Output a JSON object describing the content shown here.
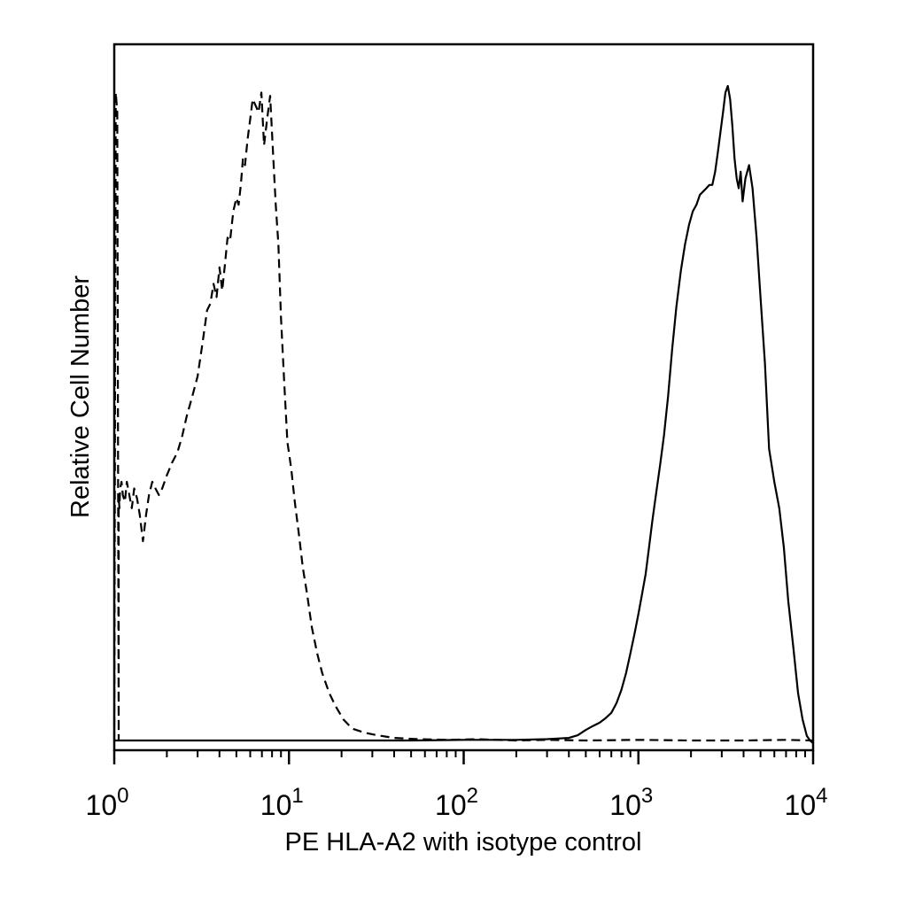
{
  "chart_data": {
    "type": "line",
    "title": "",
    "xlabel": "PE HLA-A2 with isotype control",
    "ylabel": "Relative Cell Number",
    "xscale": "log",
    "xlim": [
      1,
      10000
    ],
    "ylim": [
      0,
      100
    ],
    "grid": false,
    "legend": "none",
    "x_ticks": [
      {
        "base": "10",
        "exp": "0",
        "value": 1
      },
      {
        "base": "10",
        "exp": "1",
        "value": 10
      },
      {
        "base": "10",
        "exp": "2",
        "value": 100
      },
      {
        "base": "10",
        "exp": "3",
        "value": 1000
      },
      {
        "base": "10",
        "exp": "4",
        "value": 10000
      }
    ],
    "series": [
      {
        "style": "dashed",
        "color": "#000000",
        "x": [
          1.0,
          1.02,
          1.04,
          1.06,
          1.06,
          1.07,
          1.08,
          1.1,
          1.12,
          1.15,
          1.18,
          1.22,
          1.26,
          1.3,
          1.35,
          1.4,
          1.46,
          1.52,
          1.58,
          1.65,
          1.72,
          1.8,
          1.88,
          2.0,
          2.15,
          2.3,
          2.45,
          2.6,
          2.8,
          3.0,
          3.2,
          3.4,
          3.55,
          3.7,
          3.85,
          4.0,
          4.15,
          4.3,
          4.45,
          4.6,
          4.8,
          5.0,
          5.15,
          5.3,
          5.45,
          5.6,
          5.8,
          6.0,
          6.2,
          6.45,
          6.7,
          6.95,
          7.2,
          7.5,
          7.8,
          8.1,
          8.4,
          8.7,
          9.0,
          9.4,
          9.8,
          10.3,
          10.8,
          11.4,
          12.0,
          12.7,
          13.5,
          14.5,
          15.5,
          17.0,
          18.5,
          20.5,
          23.0,
          27.0,
          32.0,
          40.0,
          55.0,
          80.0,
          120.0,
          200.0,
          300.0,
          500.0,
          1000.0,
          2000.0,
          4000.0,
          7000.0,
          10000.0
        ],
        "y": [
          0.8,
          99.0,
          96.0,
          1.0,
          38.0,
          36.0,
          39.0,
          40.0,
          38.0,
          37.0,
          40.0,
          38.0,
          36.0,
          39.0,
          37.5,
          35.0,
          31.0,
          35.0,
          38.0,
          40.0,
          39.0,
          38.0,
          39.0,
          41.0,
          43.0,
          44.5,
          47.0,
          50.0,
          53.0,
          56.0,
          61.0,
          66.0,
          67.0,
          70.0,
          68.0,
          72.5,
          69.0,
          73.0,
          77.0,
          76.5,
          81.0,
          83.0,
          82.0,
          85.0,
          89.0,
          88.0,
          92.0,
          95.0,
          98.0,
          97.0,
          96.0,
          99.0,
          91.0,
          95.0,
          98.5,
          90.0,
          82.0,
          76.0,
          65.0,
          55.0,
          46.0,
          42.0,
          37.0,
          32.0,
          27.0,
          23.0,
          18.0,
          14.0,
          11.0,
          8.0,
          6.0,
          4.0,
          2.6,
          2.0,
          1.6,
          1.2,
          1.0,
          0.9,
          1.0,
          0.8,
          0.9,
          0.8,
          0.9,
          0.8,
          0.8,
          0.9,
          0.8
        ]
      },
      {
        "style": "solid",
        "color": "#000000",
        "x": [
          1.0,
          10.0,
          50.0,
          100.0,
          200.0,
          300.0,
          400.0,
          450.0,
          500.0,
          550.0,
          600.0,
          650.0,
          700.0,
          750.0,
          800.0,
          850.0,
          900.0,
          950.0,
          1000.0,
          1050.0,
          1100.0,
          1150.0,
          1200.0,
          1260.0,
          1330.0,
          1400.0,
          1480.0,
          1560.0,
          1650.0,
          1750.0,
          1850.0,
          1950.0,
          2050.0,
          2150.0,
          2250.0,
          2350.0,
          2450.0,
          2550.0,
          2650.0,
          2750.0,
          2850.0,
          2950.0,
          3050.0,
          3150.0,
          3250.0,
          3350.0,
          3450.0,
          3550.0,
          3650.0,
          3750.0,
          3850.0,
          3950.0,
          4100.0,
          4300.0,
          4500.0,
          4750.0,
          5000.0,
          5300.0,
          5600.0,
          6000.0,
          6400.0,
          6800.0,
          7200.0,
          7700.0,
          8200.0,
          8700.0,
          9200.0,
          9600.0,
          10000.0
        ],
        "y": [
          0.8,
          0.8,
          0.8,
          0.9,
          0.9,
          1.0,
          1.2,
          1.6,
          2.4,
          3.0,
          3.5,
          4.2,
          5.0,
          6.5,
          8.5,
          11.0,
          14.0,
          17.0,
          20.0,
          23.0,
          26.0,
          30.0,
          34.0,
          38.0,
          42.5,
          47.0,
          53.0,
          60.0,
          66.5,
          72.0,
          76.0,
          79.0,
          81.0,
          82.0,
          83.5,
          84.0,
          84.5,
          85.0,
          85.0,
          87.0,
          90.0,
          93.0,
          96.0,
          99.0,
          100.0,
          98.0,
          94.0,
          89.0,
          86.0,
          84.5,
          87.0,
          82.5,
          86.0,
          88.0,
          84.5,
          77.0,
          68.0,
          58.0,
          45.0,
          40.0,
          36.0,
          30.0,
          22.0,
          15.0,
          8.0,
          4.0,
          1.5,
          0.8,
          0.4
        ]
      }
    ]
  }
}
